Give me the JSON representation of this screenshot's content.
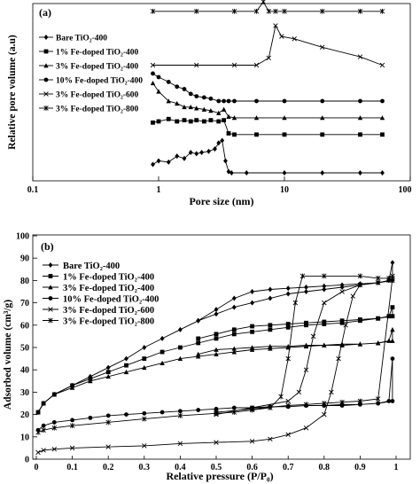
{
  "chart_data": [
    {
      "panel_label": "(a)",
      "type": "line",
      "xlabel": "Pore size (nm)",
      "ylabel": "Relative pore volume (a.u)",
      "xscale": "log",
      "xlim": [
        0.1,
        100
      ],
      "x_ticks": [
        "0.1",
        "1",
        "10",
        "100"
      ],
      "y_ticks_visible": false,
      "grid": false,
      "legend_position": "left",
      "series": [
        {
          "name": "Bare TiO₂-400",
          "marker": "diamond",
          "x": [
            0.9,
            1.0,
            1.2,
            1.4,
            1.6,
            1.8,
            2.0,
            2.2,
            2.5,
            2.8,
            3.0,
            3.2,
            3.4,
            3.6,
            3.8,
            5,
            10,
            20,
            40,
            60
          ],
          "y": [
            0.07,
            0.1,
            0.09,
            0.14,
            0.12,
            0.17,
            0.16,
            0.17,
            0.18,
            0.2,
            0.25,
            0.27,
            0.1,
            0.01,
            0.0,
            0.0,
            0.0,
            0.0,
            0.0,
            0.0
          ]
        },
        {
          "name": "1% Fe-doped TiO₂-400",
          "marker": "square",
          "x": [
            0.9,
            1.0,
            1.2,
            1.4,
            1.6,
            1.8,
            2.0,
            2.3,
            2.6,
            3.0,
            3.3,
            3.6,
            4,
            6,
            10,
            20,
            40,
            60
          ],
          "y": [
            0.42,
            0.43,
            0.45,
            0.43,
            0.44,
            0.43,
            0.44,
            0.43,
            0.44,
            0.43,
            0.44,
            0.33,
            0.32,
            0.32,
            0.32,
            0.32,
            0.32,
            0.32
          ]
        },
        {
          "name": "3% Fe-doped TiO₂-400",
          "marker": "triangle",
          "x": [
            0.9,
            1.0,
            1.2,
            1.4,
            1.6,
            1.8,
            2.0,
            2.3,
            2.6,
            3.0,
            3.3,
            3.6,
            4,
            6,
            10,
            20,
            40,
            60
          ],
          "y": [
            0.75,
            0.68,
            0.6,
            0.58,
            0.55,
            0.55,
            0.54,
            0.53,
            0.52,
            0.5,
            0.53,
            0.47,
            0.46,
            0.46,
            0.46,
            0.46,
            0.46,
            0.46
          ]
        },
        {
          "name": "10% Fe-doped TiO₂-400",
          "marker": "circle",
          "x": [
            0.9,
            1.0,
            1.2,
            1.4,
            1.6,
            1.8,
            2.0,
            2.3,
            2.6,
            3.0,
            3.3,
            3.6,
            4,
            6,
            10,
            20,
            40,
            60
          ],
          "y": [
            0.83,
            0.8,
            0.76,
            0.72,
            0.7,
            0.66,
            0.64,
            0.63,
            0.62,
            0.6,
            0.6,
            0.6,
            0.6,
            0.6,
            0.6,
            0.6,
            0.6,
            0.6
          ]
        },
        {
          "name": "3% Fe-doped TiO₂-600",
          "marker": "x",
          "x": [
            0.9,
            2,
            4,
            6,
            7.5,
            8.5,
            9.5,
            12,
            20,
            40,
            60
          ],
          "y": [
            0.9,
            0.9,
            0.9,
            0.9,
            0.96,
            1.23,
            1.14,
            1.12,
            1.05,
            0.97,
            0.9
          ]
        },
        {
          "name": "3% Fe-doped TiO₂-800",
          "marker": "star",
          "x": [
            0.9,
            2,
            4,
            6,
            6.8,
            7.5,
            8.5,
            10,
            20,
            40,
            60
          ],
          "y": [
            1.35,
            1.35,
            1.35,
            1.35,
            1.43,
            1.35,
            1.35,
            1.35,
            1.35,
            1.35,
            1.35
          ]
        }
      ]
    },
    {
      "panel_label": "(b)",
      "type": "line",
      "xlabel": "Relative pressure (P/P₀)",
      "ylabel": "Adsorbed volume (cm³/g)",
      "xlim": [
        0,
        1
      ],
      "ylim": [
        0,
        100
      ],
      "x_ticks": [
        "0",
        "0.1",
        "0.2",
        "0.3",
        "0.4",
        "0.5",
        "0.6",
        "0.7",
        "0.8",
        "0.9",
        "1"
      ],
      "y_ticks": [
        "0",
        "10",
        "20",
        "30",
        "40",
        "50",
        "60",
        "70",
        "80",
        "90",
        "100"
      ],
      "grid": false,
      "legend_position": "top-left",
      "series": [
        {
          "name": "Bare TiO₂-400",
          "marker": "diamond",
          "x": [
            0.005,
            0.02,
            0.05,
            0.1,
            0.15,
            0.2,
            0.25,
            0.3,
            0.35,
            0.4,
            0.45,
            0.5,
            0.55,
            0.6,
            0.65,
            0.7,
            0.75,
            0.8,
            0.85,
            0.9,
            0.95,
            0.98,
            0.99,
            0.99,
            0.95,
            0.9,
            0.85,
            0.8,
            0.75,
            0.7,
            0.65,
            0.6,
            0.55,
            0.5,
            0.45
          ],
          "y": [
            21,
            25,
            29,
            33,
            37,
            41,
            45,
            50,
            54,
            58,
            62,
            65,
            68,
            70,
            72,
            74,
            75,
            76,
            77,
            78,
            79,
            80,
            88,
            80,
            79,
            78.5,
            78,
            77.5,
            77,
            76.5,
            76,
            75,
            72,
            67,
            62
          ]
        },
        {
          "name": "1% Fe-doped TiO₂-400",
          "marker": "square",
          "x": [
            0.005,
            0.02,
            0.05,
            0.1,
            0.15,
            0.2,
            0.25,
            0.3,
            0.35,
            0.4,
            0.45,
            0.5,
            0.55,
            0.6,
            0.65,
            0.7,
            0.75,
            0.8,
            0.85,
            0.9,
            0.95,
            0.98,
            0.99,
            0.99,
            0.95,
            0.9,
            0.85,
            0.8,
            0.75,
            0.7,
            0.65,
            0.6,
            0.55,
            0.5,
            0.45
          ],
          "y": [
            21,
            25,
            29,
            33,
            36,
            39,
            42,
            45,
            48,
            50,
            52,
            54,
            56,
            57,
            58,
            59,
            60,
            60.5,
            61,
            62,
            63,
            64,
            68,
            64,
            63,
            62.5,
            62,
            61.5,
            61,
            60.5,
            60,
            59.5,
            58,
            56,
            54
          ]
        },
        {
          "name": "3% Fe-doped TiO₂-400",
          "marker": "triangle",
          "x": [
            0.005,
            0.02,
            0.05,
            0.1,
            0.15,
            0.2,
            0.25,
            0.3,
            0.35,
            0.4,
            0.45,
            0.5,
            0.55,
            0.6,
            0.65,
            0.7,
            0.75,
            0.8,
            0.85,
            0.9,
            0.95,
            0.98,
            0.99,
            0.99,
            0.95,
            0.9,
            0.85,
            0.8,
            0.75,
            0.7,
            0.65,
            0.6,
            0.55,
            0.5,
            0.45
          ],
          "y": [
            21,
            25,
            29,
            32,
            35,
            37,
            39,
            41,
            43,
            45,
            46,
            47,
            48,
            49,
            49.5,
            50,
            50.5,
            51,
            51,
            51.5,
            52,
            53,
            58,
            53,
            52,
            51.5,
            51.5,
            51,
            51,
            50.5,
            50.5,
            50,
            49.5,
            49,
            47
          ]
        },
        {
          "name": "10% Fe-doped TiO₂-400",
          "marker": "circle",
          "x": [
            0.005,
            0.02,
            0.05,
            0.1,
            0.15,
            0.2,
            0.25,
            0.3,
            0.35,
            0.4,
            0.45,
            0.5,
            0.55,
            0.6,
            0.65,
            0.7,
            0.75,
            0.8,
            0.85,
            0.9,
            0.95,
            0.98,
            0.99,
            0.99,
            0.95,
            0.9,
            0.85,
            0.8,
            0.75,
            0.7,
            0.65,
            0.6
          ],
          "y": [
            13,
            15,
            16.5,
            17.5,
            18.5,
            19.5,
            20,
            20.5,
            21,
            21.5,
            22,
            22.5,
            23,
            23,
            23.5,
            23.5,
            24,
            24,
            24,
            24.5,
            25,
            26,
            45,
            26,
            25,
            24.5,
            24.5,
            24,
            24,
            23.5,
            23.5,
            23
          ]
        },
        {
          "name": "3% Fe-doped TiO₂-600",
          "marker": "x",
          "x": [
            0.005,
            0.02,
            0.05,
            0.1,
            0.2,
            0.3,
            0.4,
            0.5,
            0.6,
            0.65,
            0.7,
            0.75,
            0.8,
            0.82,
            0.84,
            0.86,
            0.88,
            0.9,
            0.95,
            0.98,
            0.99,
            0.99,
            0.95,
            0.9,
            0.85,
            0.8,
            0.77,
            0.75,
            0.73,
            0.7,
            0.6,
            0.5
          ],
          "y": [
            3,
            4,
            4.5,
            5,
            5.5,
            6,
            7,
            7.5,
            8,
            9,
            11,
            14,
            20,
            30,
            45,
            60,
            73,
            78,
            79,
            80,
            81,
            80,
            79,
            78,
            75,
            70,
            55,
            40,
            30,
            26,
            23,
            20
          ]
        },
        {
          "name": "3% Fe-doped TiO₂-800",
          "marker": "star",
          "x": [
            0.005,
            0.02,
            0.05,
            0.1,
            0.2,
            0.3,
            0.4,
            0.5,
            0.55,
            0.6,
            0.65,
            0.68,
            0.7,
            0.72,
            0.74,
            0.8,
            0.9,
            0.95,
            0.98,
            0.99,
            0.99,
            0.95,
            0.9,
            0.85,
            0.8,
            0.75,
            0.7,
            0.6,
            0.5
          ],
          "y": [
            12,
            13,
            14,
            15,
            16.5,
            18,
            19.5,
            20.5,
            21,
            22,
            23,
            28,
            45,
            70,
            82,
            82,
            82,
            81,
            81,
            82,
            81,
            27,
            26,
            25.5,
            25,
            24.5,
            24,
            22.5,
            21
          ]
        }
      ]
    }
  ]
}
